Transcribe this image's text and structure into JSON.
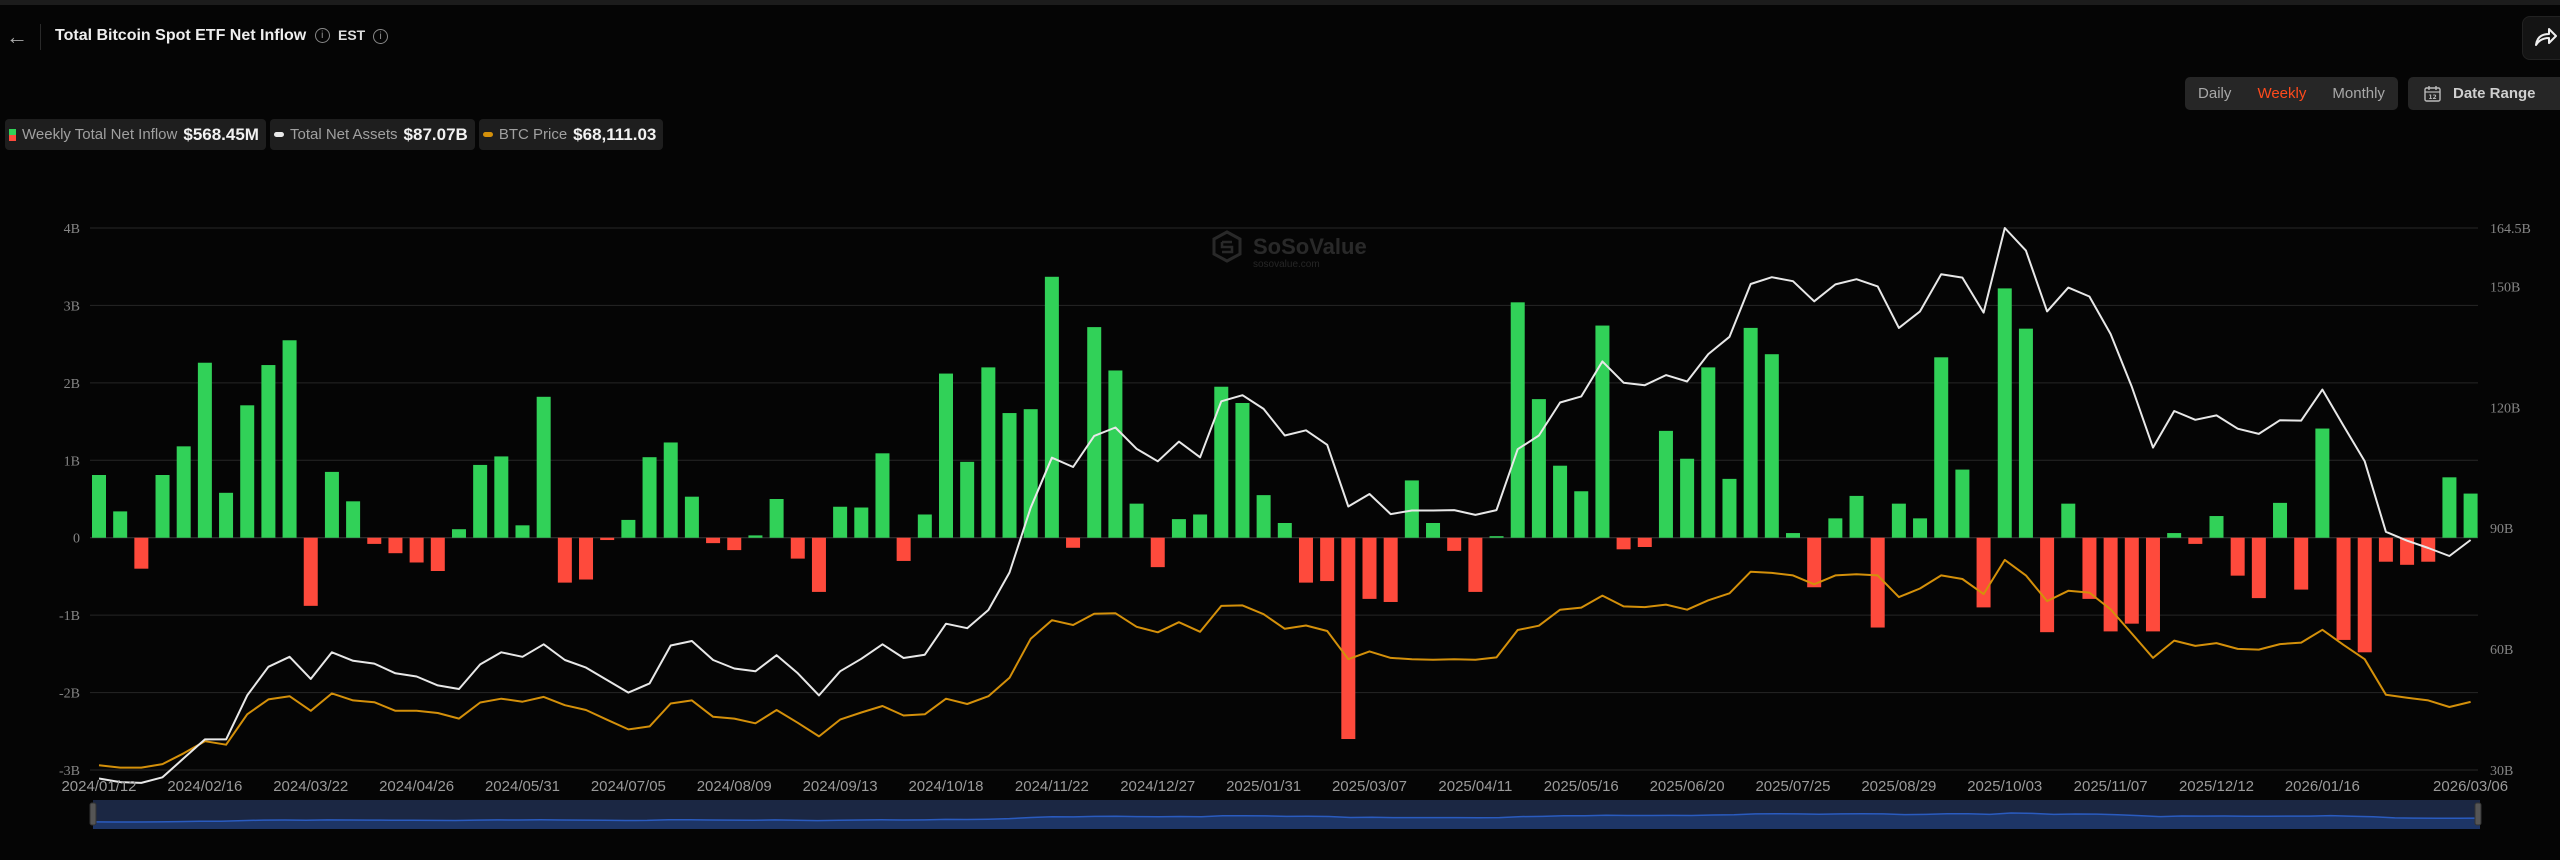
{
  "header": {
    "title": "Total Bitcoin Spot ETF Net Inflow",
    "timezone": "EST"
  },
  "toolbar": {
    "periods": [
      "Daily",
      "Weekly",
      "Monthly"
    ],
    "active_period": "Weekly",
    "date_range_label": "Date Range"
  },
  "legend": [
    {
      "label": "Weekly Total Net Inflow",
      "value": "$568.45M",
      "colors": [
        "#31d158",
        "#fe4a3c"
      ]
    },
    {
      "label": "Total Net Assets",
      "value": "$87.07B",
      "color": "#e8e8e8"
    },
    {
      "label": "BTC Price",
      "value": "$68,111.03",
      "color": "#d4900a"
    }
  ],
  "watermark": {
    "name": "SoSoValue",
    "url": "sosovalue.com"
  },
  "chart_data": {
    "type": "bar+line",
    "categories": [
      "2024/01/12",
      "2024/01/19",
      "2024/01/26",
      "2024/02/02",
      "2024/02/09",
      "2024/02/16",
      "2024/02/23",
      "2024/03/01",
      "2024/03/08",
      "2024/03/15",
      "2024/03/22",
      "2024/03/29",
      "2024/04/05",
      "2024/04/12",
      "2024/04/19",
      "2024/04/26",
      "2024/05/03",
      "2024/05/10",
      "2024/05/17",
      "2024/05/24",
      "2024/05/31",
      "2024/06/07",
      "2024/06/14",
      "2024/06/21",
      "2024/06/28",
      "2024/07/05",
      "2024/07/12",
      "2024/07/19",
      "2024/07/26",
      "2024/08/02",
      "2024/08/09",
      "2024/08/16",
      "2024/08/23",
      "2024/08/30",
      "2024/09/06",
      "2024/09/13",
      "2024/09/20",
      "2024/09/27",
      "2024/10/04",
      "2024/10/11",
      "2024/10/18",
      "2024/10/25",
      "2024/11/01",
      "2024/11/08",
      "2024/11/15",
      "2024/11/22",
      "2024/11/29",
      "2024/12/06",
      "2024/12/13",
      "2024/12/20",
      "2024/12/27",
      "2025/01/03",
      "2025/01/10",
      "2025/01/17",
      "2025/01/24",
      "2025/01/31",
      "2025/02/07",
      "2025/02/14",
      "2025/02/21",
      "2025/02/28",
      "2025/03/07",
      "2025/03/14",
      "2025/03/21",
      "2025/03/28",
      "2025/04/04",
      "2025/04/11",
      "2025/04/18",
      "2025/04/25",
      "2025/05/02",
      "2025/05/09",
      "2025/05/16",
      "2025/05/23",
      "2025/05/30",
      "2025/06/06",
      "2025/06/13",
      "2025/06/20",
      "2025/06/27",
      "2025/07/04",
      "2025/07/11",
      "2025/07/18",
      "2025/07/25",
      "2025/08/01",
      "2025/08/08",
      "2025/08/15",
      "2025/08/22",
      "2025/08/29",
      "2025/09/05",
      "2025/09/12",
      "2025/09/19",
      "2025/09/26",
      "2025/10/03",
      "2025/10/10",
      "2025/10/17",
      "2025/10/24",
      "2025/10/31",
      "2025/11/07",
      "2025/11/14",
      "2025/11/21",
      "2025/11/28",
      "2025/12/05",
      "2025/12/12",
      "2025/12/19",
      "2025/12/26",
      "2026/01/02",
      "2026/01/09",
      "2026/01/16",
      "2026/01/23",
      "2026/01/30",
      "2026/02/06",
      "2026/02/13",
      "2026/02/20",
      "2026/02/27",
      "2026/03/06"
    ],
    "x_tick_labels": [
      "2024/01/12",
      "2024/02/16",
      "2024/03/22",
      "2024/04/26",
      "2024/05/31",
      "2024/07/05",
      "2024/08/09",
      "2024/09/13",
      "2024/10/18",
      "2024/11/22",
      "2024/12/27",
      "2025/01/31",
      "2025/03/07",
      "2025/04/11",
      "2025/05/16",
      "2025/06/20",
      "2025/07/25",
      "2025/08/29",
      "2025/10/03",
      "2025/11/07",
      "2025/12/12",
      "2026/01/16",
      "2026/03/06"
    ],
    "left_axis": {
      "ticks": [
        "4B",
        "3B",
        "2B",
        "1B",
        "0",
        "-1B",
        "-2B",
        "-3B"
      ],
      "range_billion_usd": [
        -3,
        4
      ]
    },
    "right_axis": {
      "ticks": [
        "164.5B",
        "150B",
        "120B",
        "90B",
        "60B",
        "30B"
      ],
      "range_billion_usd": [
        30,
        164.5
      ]
    },
    "grid": true,
    "series": [
      {
        "name": "Weekly Total Net Inflow",
        "type": "bar",
        "axis": "left",
        "unit": "billion USD",
        "positive_color": "#31d158",
        "negative_color": "#fe4a3c",
        "values": [
          0.81,
          0.34,
          -0.4,
          0.81,
          1.18,
          2.26,
          0.58,
          1.71,
          2.23,
          2.55,
          -0.88,
          0.85,
          0.47,
          -0.08,
          -0.2,
          -0.32,
          -0.43,
          0.11,
          0.94,
          1.05,
          0.16,
          1.82,
          -0.58,
          -0.54,
          -0.03,
          0.23,
          1.04,
          1.23,
          0.53,
          -0.07,
          -0.16,
          0.03,
          0.5,
          -0.27,
          -0.7,
          0.4,
          0.39,
          1.09,
          -0.3,
          0.3,
          2.12,
          0.98,
          2.2,
          1.61,
          1.66,
          3.37,
          -0.13,
          2.72,
          2.16,
          0.44,
          -0.38,
          0.24,
          0.3,
          1.95,
          1.74,
          0.55,
          0.19,
          -0.58,
          -0.56,
          -2.6,
          -0.79,
          -0.83,
          0.74,
          0.19,
          -0.17,
          -0.7,
          0.02,
          3.04,
          1.79,
          0.93,
          0.6,
          2.74,
          -0.15,
          -0.12,
          1.38,
          1.02,
          2.2,
          0.76,
          2.71,
          2.37,
          0.06,
          -0.64,
          0.25,
          0.54,
          -1.16,
          0.44,
          0.25,
          2.33,
          0.88,
          -0.9,
          3.22,
          2.7,
          -1.22,
          0.44,
          -0.79,
          -1.21,
          -1.11,
          -1.21,
          0.06,
          -0.08,
          0.28,
          -0.49,
          -0.78,
          0.45,
          -0.67,
          1.41,
          -1.32,
          -1.48,
          -0.31,
          -0.35,
          -0.31,
          0.78,
          0.57
        ]
      },
      {
        "name": "Total Net Assets",
        "type": "line",
        "axis": "right",
        "unit": "billion USD",
        "color": "#e8e8e8",
        "values": [
          27.9,
          27.0,
          26.8,
          28.2,
          32.9,
          37.6,
          37.6,
          48.5,
          55.6,
          58.1,
          52.6,
          59.2,
          57.1,
          56.4,
          54.0,
          53.2,
          51.0,
          50.1,
          56.2,
          59.2,
          58.1,
          61.2,
          57.3,
          55.4,
          52.3,
          49.2,
          51.5,
          60.9,
          62.0,
          57.3,
          55.2,
          54.5,
          58.5,
          54.0,
          48.5,
          54.5,
          57.6,
          61.2,
          57.8,
          58.6,
          66.3,
          65.2,
          69.7,
          79.0,
          95.1,
          107.5,
          105.2,
          112.9,
          115.0,
          109.7,
          106.6,
          111.5,
          107.6,
          121.5,
          123.0,
          119.6,
          113.0,
          114.3,
          110.7,
          95.4,
          98.5,
          93.5,
          94.4,
          94.4,
          94.5,
          93.3,
          94.5,
          109.6,
          113.0,
          121.2,
          122.7,
          131.4,
          126.1,
          125.5,
          128.0,
          126.4,
          133.2,
          137.5,
          150.6,
          152.3,
          151.3,
          146.3,
          150.5,
          151.8,
          150.0,
          139.7,
          143.8,
          153.0,
          152.2,
          143.5,
          164.5,
          158.9,
          143.8,
          149.7,
          147.5,
          138.2,
          125.1,
          110.0,
          119.1,
          116.9,
          118.0,
          114.7,
          113.4,
          116.8,
          116.7,
          124.4,
          115.4,
          106.6,
          89.1,
          86.9,
          85.1,
          83.1,
          87.07
        ]
      },
      {
        "name": "BTC Price",
        "type": "line",
        "axis": "hidden",
        "unit": "USD",
        "color": "#d4900a",
        "values": [
          42900,
          42000,
          42000,
          43400,
          47700,
          52500,
          51100,
          63200,
          69100,
          70400,
          64600,
          71500,
          68700,
          68000,
          64600,
          64600,
          63700,
          61500,
          67900,
          69400,
          68200,
          70100,
          66800,
          64900,
          61000,
          57200,
          58400,
          67500,
          68700,
          62200,
          61500,
          59600,
          64900,
          59800,
          54400,
          61100,
          63900,
          66500,
          62700,
          63200,
          69400,
          67300,
          70400,
          77700,
          93200,
          100600,
          98700,
          103200,
          103400,
          98000,
          95800,
          99800,
          96000,
          106300,
          106500,
          103000,
          97200,
          98500,
          96300,
          85100,
          88200,
          85600,
          85100,
          84900,
          85100,
          84900,
          85800,
          96700,
          98400,
          104800,
          105600,
          110400,
          106100,
          105800,
          106800,
          104800,
          108500,
          111300,
          119900,
          119400,
          118400,
          114900,
          118400,
          118900,
          118400,
          109800,
          113200,
          118400,
          117000,
          111000,
          124600,
          118400,
          108200,
          112300,
          111600,
          104900,
          95300,
          85600,
          92500,
          90400,
          91500,
          89200,
          88900,
          91100,
          91700,
          96800,
          90800,
          85100,
          71000,
          69800,
          68700,
          66100,
          68111.03
        ]
      }
    ]
  }
}
